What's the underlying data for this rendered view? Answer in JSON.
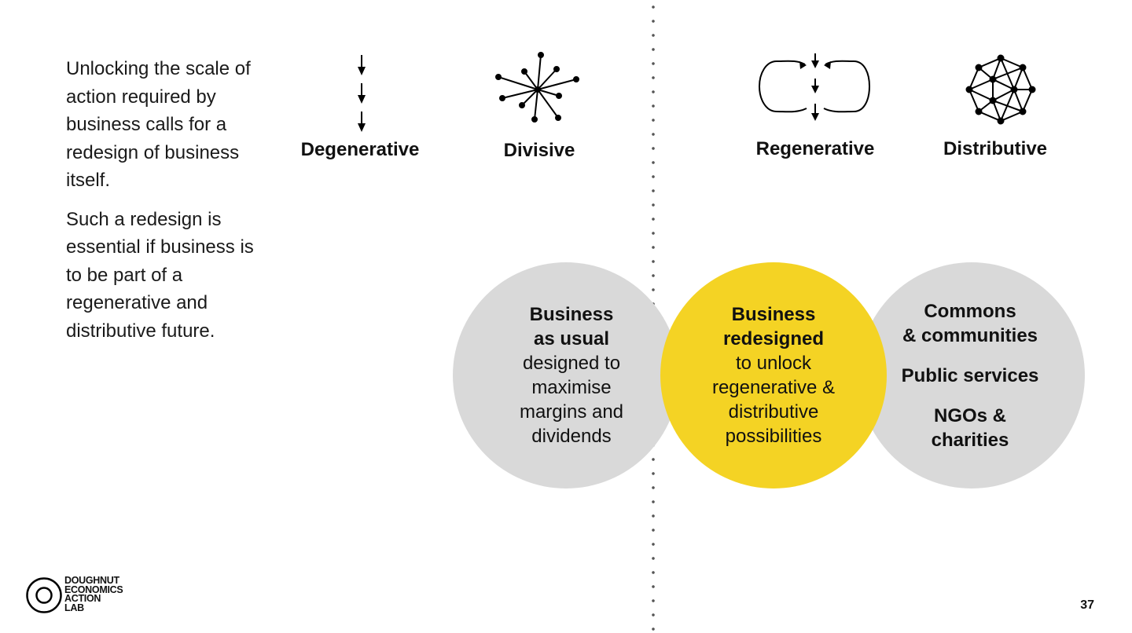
{
  "intro": {
    "para1": "Unlocking the scale of action required by business calls for a redesign of business itself.",
    "para2": "Such a redesign is essential if business is to be part of a regenerative and distributive future."
  },
  "patterns": {
    "degenerative": "Degenerative",
    "divisive": "Divisive",
    "regenerative": "Regenerative",
    "distributive": "Distributive"
  },
  "circles": {
    "usual": {
      "title1": "Business",
      "title2": "as usual",
      "lines": [
        "designed to",
        "maximise",
        "margins and",
        "dividends"
      ]
    },
    "redesigned": {
      "title1": "Business",
      "title2": "redesigned",
      "lines": [
        "to unlock",
        "regenerative &",
        "distributive",
        "possibilities"
      ]
    },
    "others": {
      "item1a": "Commons",
      "item1b": "& communities",
      "item2": "Public services",
      "item3a": "NGOs &",
      "item3b": "charities"
    }
  },
  "logo": {
    "line1": "DOUGHNUT",
    "line2": "ECONOMICS",
    "line3": "ACTION",
    "line4": "LAB"
  },
  "page_number": "37",
  "colors": {
    "yellow": "#f4d324",
    "grey": "#d9d9d9"
  }
}
